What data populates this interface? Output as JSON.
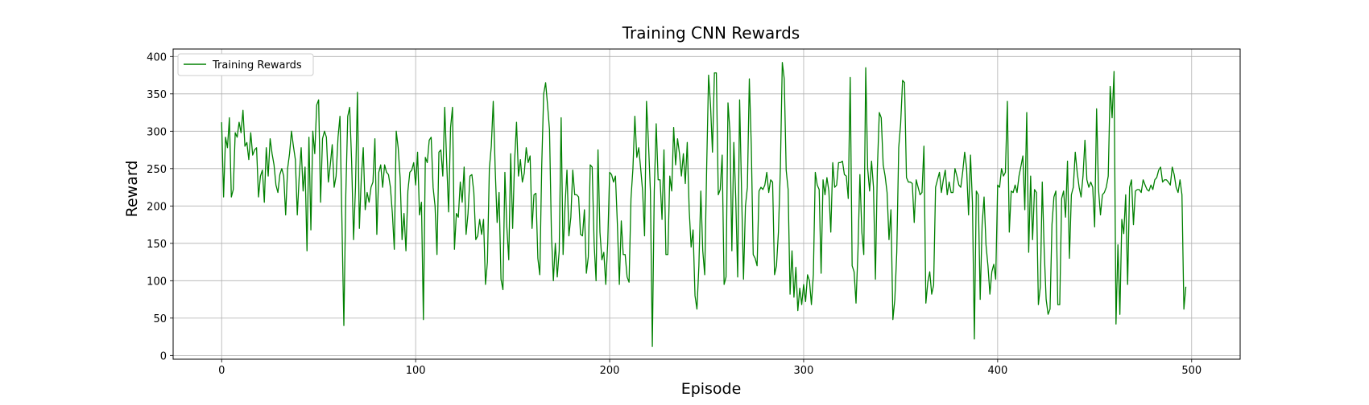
{
  "chart_data": {
    "type": "line",
    "title": "Training CNN Rewards",
    "xlabel": "Episode",
    "ylabel": "Reward",
    "xlim": [
      -25,
      525
    ],
    "ylim": [
      -5,
      410
    ],
    "xticks": [
      0,
      100,
      200,
      300,
      400,
      500
    ],
    "yticks": [
      0,
      50,
      100,
      150,
      200,
      250,
      300,
      350,
      400
    ],
    "grid": true,
    "legend": "top-left",
    "series": [
      {
        "name": "Training Rewards",
        "color": "#008000",
        "x_start": 0,
        "x_step": 1,
        "values": [
          312,
          212,
          292,
          278,
          318,
          212,
          222,
          298,
          292,
          312,
          298,
          328,
          280,
          285,
          262,
          298,
          268,
          275,
          278,
          212,
          240,
          248,
          205,
          278,
          240,
          290,
          270,
          255,
          228,
          218,
          242,
          250,
          240,
          188,
          250,
          270,
          300,
          280,
          262,
          188,
          240,
          278,
          220,
          252,
          140,
          292,
          168,
          300,
          270,
          335,
          342,
          205,
          290,
          300,
          292,
          232,
          255,
          282,
          225,
          240,
          292,
          320,
          180,
          40,
          215,
          320,
          332,
          260,
          155,
          225,
          352,
          170,
          238,
          278,
          195,
          218,
          205,
          225,
          232,
          290,
          162,
          245,
          255,
          225,
          255,
          245,
          242,
          225,
          190,
          142,
          300,
          278,
          238,
          155,
          190,
          140,
          220,
          245,
          248,
          258,
          228,
          272,
          188,
          205,
          48,
          265,
          258,
          288,
          292,
          225,
          200,
          135,
          272,
          275,
          240,
          332,
          258,
          192,
          305,
          332,
          142,
          190,
          185,
          232,
          205,
          252,
          162,
          190,
          240,
          242,
          218,
          155,
          160,
          182,
          162,
          182,
          95,
          125,
          250,
          280,
          340,
          250,
          178,
          218,
          102,
          88,
          245,
          172,
          128,
          270,
          170,
          260,
          312,
          240,
          262,
          232,
          244,
          278,
          258,
          267,
          170,
          215,
          217,
          130,
          108,
          255,
          350,
          365,
          335,
          302,
          162,
          100,
          150,
          105,
          140,
          318,
          135,
          200,
          248,
          160,
          185,
          248,
          215,
          215,
          212,
          162,
          160,
          195,
          110,
          132,
          255,
          252,
          150,
          100,
          275,
          165,
          128,
          138,
          95,
          150,
          245,
          242,
          232,
          240,
          175,
          95,
          180,
          135,
          135,
          105,
          98,
          210,
          250,
          320,
          265,
          278,
          250,
          220,
          160,
          340,
          285,
          220,
          12,
          220,
          310,
          235,
          235,
          182,
          275,
          135,
          135,
          240,
          220,
          305,
          255,
          290,
          270,
          240,
          270,
          230,
          285,
          195,
          145,
          168,
          80,
          62,
          120,
          220,
          140,
          108,
          250,
          375,
          335,
          272,
          378,
          378,
          215,
          222,
          268,
          95,
          105,
          338,
          300,
          140,
          285,
          210,
          105,
          342,
          220,
          102,
          200,
          225,
          370,
          282,
          135,
          130,
          120,
          220,
          225,
          222,
          228,
          245,
          218,
          235,
          232,
          108,
          120,
          165,
          250,
          392,
          370,
          248,
          222,
          82,
          140,
          78,
          118,
          60,
          90,
          68,
          95,
          72,
          108,
          100,
          68,
          108,
          245,
          228,
          222,
          110,
          235,
          215,
          238,
          220,
          165,
          258,
          225,
          228,
          258,
          258,
          260,
          242,
          240,
          210,
          372,
          120,
          112,
          70,
          140,
          242,
          165,
          135,
          385,
          250,
          220,
          260,
          225,
          102,
          250,
          325,
          318,
          255,
          240,
          218,
          155,
          195,
          48,
          75,
          138,
          278,
          310,
          368,
          365,
          238,
          232,
          232,
          230,
          178,
          235,
          225,
          215,
          218,
          280,
          70,
          98,
          112,
          82,
          94,
          225,
          235,
          245,
          218,
          235,
          248,
          215,
          232,
          218,
          218,
          250,
          240,
          228,
          225,
          246,
          272,
          250,
          188,
          268,
          205,
          22,
          220,
          215,
          75,
          175,
          212,
          148,
          120,
          82,
          112,
          122,
          102,
          228,
          225,
          250,
          240,
          245,
          340,
          165,
          220,
          218,
          228,
          218,
          240,
          253,
          267,
          195,
          325,
          138,
          240,
          155,
          222,
          218,
          68,
          92,
          232,
          140,
          75,
          55,
          62,
          175,
          212,
          220,
          68,
          68,
          210,
          220,
          185,
          260,
          130,
          215,
          225,
          272,
          245,
          225,
          212,
          240,
          288,
          235,
          225,
          232,
          225,
          172,
          330,
          222,
          188,
          215,
          218,
          225,
          240,
          360,
          318,
          380,
          42,
          148,
          55,
          182,
          163,
          215,
          95,
          225,
          235,
          175,
          220,
          222,
          222,
          218,
          235,
          228,
          222,
          220,
          228,
          222,
          235,
          238,
          248,
          252,
          232,
          235,
          235,
          232,
          228,
          252,
          242,
          225,
          218,
          235,
          215,
          62,
          92
        ]
      }
    ]
  }
}
